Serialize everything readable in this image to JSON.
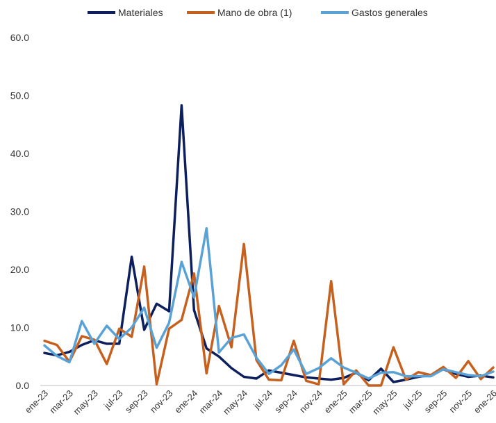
{
  "chart_data": {
    "type": "line",
    "ylim": [
      0,
      60
    ],
    "y_ticks": [
      "0.0",
      "10.0",
      "20.0",
      "30.0",
      "40.0",
      "50.0",
      "60.0"
    ],
    "grid": false,
    "legend_position": "top",
    "x": [
      "ene-23",
      "feb-23",
      "mar-23",
      "abr-23",
      "may-23",
      "jun-23",
      "jul-23",
      "ago-23",
      "sep-23",
      "oct-23",
      "nov-23",
      "dic-23",
      "ene-24",
      "feb-24",
      "mar-24",
      "abr-24",
      "may-24",
      "jun-24",
      "jul-24",
      "ago-24",
      "sep-24",
      "oct-24",
      "nov-24",
      "dic-24",
      "ene-25",
      "feb-25",
      "mar-25",
      "abr-25",
      "may-25",
      "jun-25",
      "jul-25",
      "ago-25",
      "sep-25",
      "oct-25",
      "nov-25",
      "dic-25",
      "ene-26"
    ],
    "x_tick_labels": [
      "ene-23",
      "mar-23",
      "may-23",
      "jul-23",
      "sep-23",
      "nov-23",
      "ene-24",
      "mar-24",
      "may-24",
      "jul-24",
      "sep-24",
      "nov-24",
      "ene-25",
      "mar-25",
      "may-25",
      "jul-25",
      "sep-25",
      "nov-25",
      "ene-26"
    ],
    "series": [
      {
        "name": "Materiales",
        "color": "#0d1f5c",
        "values": [
          5.6,
          5.2,
          5.8,
          7.0,
          7.8,
          7.2,
          7.2,
          22.2,
          9.6,
          14.1,
          12.8,
          48.3,
          13.0,
          6.4,
          5.0,
          3.0,
          1.5,
          1.2,
          2.6,
          2.2,
          1.8,
          1.4,
          1.2,
          1.0,
          1.3,
          2.2,
          0.9,
          2.9,
          0.6,
          1.0,
          1.5,
          1.8,
          2.8,
          2.0,
          1.5,
          1.7,
          1.4
        ]
      },
      {
        "name": "Mano de obra (1)",
        "color": "#c5601e",
        "values": [
          7.7,
          7.0,
          4.1,
          8.5,
          7.9,
          3.7,
          9.8,
          8.4,
          20.5,
          0.2,
          9.8,
          11.3,
          19.3,
          2.1,
          13.7,
          6.6,
          24.4,
          4.4,
          1.0,
          0.9,
          7.7,
          0.8,
          0.2,
          18.0,
          0.2,
          2.6,
          0.0,
          0.0,
          6.6,
          1.0,
          2.3,
          1.8,
          3.2,
          1.3,
          4.2,
          1.1,
          3.1
        ]
      },
      {
        "name": "Gastos generales",
        "color": "#5aa2d6",
        "values": [
          6.9,
          5.1,
          4.0,
          11.1,
          7.2,
          10.3,
          8.0,
          10.0,
          13.4,
          6.5,
          10.8,
          21.3,
          15.2,
          27.1,
          5.7,
          8.2,
          8.8,
          4.8,
          2.0,
          3.5,
          6.2,
          2.0,
          3.0,
          4.7,
          3.1,
          2.2,
          1.2,
          2.2,
          2.3,
          1.6,
          1.6,
          1.6,
          2.8,
          2.3,
          1.8,
          1.6,
          2.4
        ]
      }
    ]
  }
}
